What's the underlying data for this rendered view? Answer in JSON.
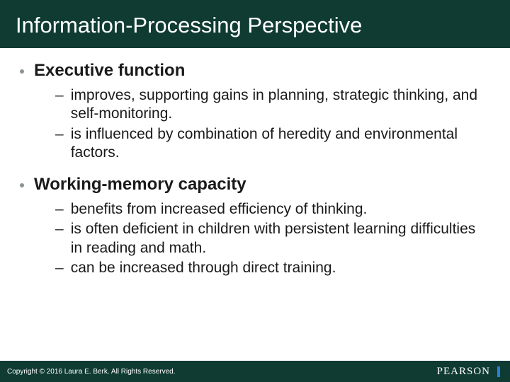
{
  "colors": {
    "title_bg": "#0f3b33",
    "title_text": "#ffffff",
    "body_text": "#1a1a1a",
    "bullet_dot": "#8a9490",
    "sub_dash": "#333333",
    "footer_bg": "#0f3b33",
    "footer_text": "#ffffff",
    "brand_text": "#ffffff",
    "brand_accent": "#2a7de1"
  },
  "title": "Information-Processing Perspective",
  "sections": [
    {
      "heading": "Executive function",
      "items": [
        "improves, supporting gains in planning, strategic thinking, and self-monitoring.",
        "is influenced by combination of heredity and environmental factors."
      ]
    },
    {
      "heading": "Working-memory capacity",
      "items": [
        "benefits from increased efficiency of thinking.",
        "is often deficient in children with persistent learning difficulties in reading and math.",
        "can be increased through direct training."
      ]
    }
  ],
  "footer": {
    "copyright": "Copyright © 2016 Laura E. Berk. All Rights Reserved.",
    "brand": "PEARSON"
  }
}
